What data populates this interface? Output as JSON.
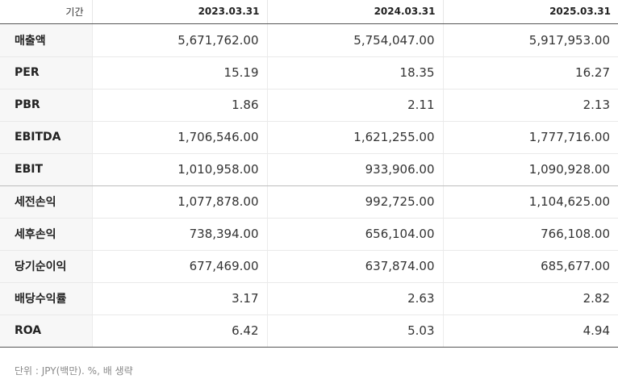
{
  "table": {
    "header": {
      "label": "기간",
      "periods": [
        "2023.03.31",
        "2024.03.31",
        "2025.03.31"
      ]
    },
    "rows": [
      {
        "label": "매출액",
        "values": [
          "5,671,762.00",
          "5,754,047.00",
          "5,917,953.00"
        ]
      },
      {
        "label": "PER",
        "values": [
          "15.19",
          "18.35",
          "16.27"
        ]
      },
      {
        "label": "PBR",
        "values": [
          "1.86",
          "2.11",
          "2.13"
        ]
      },
      {
        "label": "EBITDA",
        "values": [
          "1,706,546.00",
          "1,621,255.00",
          "1,777,716.00"
        ]
      },
      {
        "label": "EBIT",
        "values": [
          "1,010,958.00",
          "933,906.00",
          "1,090,928.00"
        ]
      },
      {
        "label": "세전손익",
        "values": [
          "1,077,878.00",
          "992,725.00",
          "1,104,625.00"
        ]
      },
      {
        "label": "세후손익",
        "values": [
          "738,394.00",
          "656,104.00",
          "766,108.00"
        ]
      },
      {
        "label": "당기순이익",
        "values": [
          "677,469.00",
          "637,874.00",
          "685,677.00"
        ]
      },
      {
        "label": "배당수익률",
        "values": [
          "3.17",
          "2.63",
          "2.82"
        ]
      },
      {
        "label": "ROA",
        "values": [
          "6.42",
          "5.03",
          "4.94"
        ]
      }
    ]
  },
  "footnote": "단위 : JPY(백만). %, 배 생략"
}
